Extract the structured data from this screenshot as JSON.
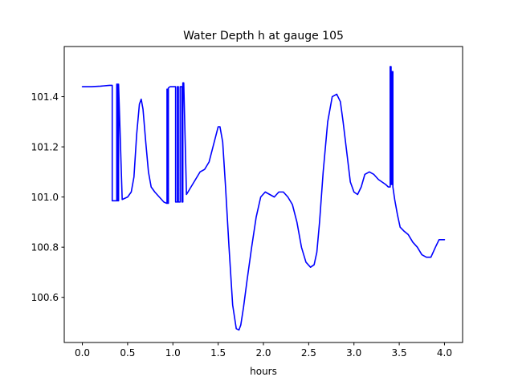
{
  "chart_data": {
    "type": "line",
    "title": "Water Depth h at gauge 105",
    "xlabel": "hours",
    "ylabel": "",
    "xlim": [
      -0.2,
      4.2
    ],
    "ylim": [
      100.42,
      101.6
    ],
    "x_ticks": [
      0.0,
      0.5,
      1.0,
      1.5,
      2.0,
      2.5,
      3.0,
      3.5,
      4.0
    ],
    "x_tick_labels": [
      "0.0",
      "0.5",
      "1.0",
      "1.5",
      "2.0",
      "2.5",
      "3.0",
      "3.5",
      "4.0"
    ],
    "y_ticks": [
      100.6,
      100.8,
      101.0,
      101.2,
      101.4
    ],
    "y_tick_labels": [
      "100.6",
      "100.8",
      "101.0",
      "101.2",
      "101.4"
    ],
    "grid": false,
    "legend": "none",
    "series": [
      {
        "color": "#0000ff",
        "x": [
          0.0,
          0.1,
          0.2,
          0.3,
          0.33,
          0.33,
          0.38,
          0.38,
          0.39,
          0.39,
          0.4,
          0.4,
          0.44,
          0.5,
          0.54,
          0.57,
          0.6,
          0.63,
          0.65,
          0.67,
          0.7,
          0.73,
          0.76,
          0.8,
          0.85,
          0.9,
          0.93,
          0.935,
          0.935,
          0.94,
          0.94,
          0.95,
          0.95,
          0.97,
          1.0,
          1.03,
          1.03,
          1.05,
          1.05,
          1.06,
          1.06,
          1.08,
          1.08,
          1.1,
          1.1,
          1.11,
          1.11,
          1.12,
          1.15,
          1.2,
          1.25,
          1.3,
          1.35,
          1.4,
          1.45,
          1.5,
          1.52,
          1.55,
          1.58,
          1.62,
          1.66,
          1.7,
          1.73,
          1.75,
          1.78,
          1.82,
          1.87,
          1.92,
          1.97,
          2.02,
          2.07,
          2.12,
          2.17,
          2.22,
          2.27,
          2.32,
          2.37,
          2.42,
          2.47,
          2.52,
          2.56,
          2.59,
          2.62,
          2.66,
          2.71,
          2.76,
          2.81,
          2.85,
          2.88,
          2.92,
          2.96,
          3.0,
          3.04,
          3.08,
          3.12,
          3.17,
          3.22,
          3.27,
          3.31,
          3.35,
          3.38,
          3.4,
          3.4,
          3.41,
          3.41,
          3.42,
          3.42,
          3.43,
          3.43,
          3.45,
          3.48,
          3.51,
          3.55,
          3.6,
          3.65,
          3.7,
          3.75,
          3.8,
          3.85,
          3.9,
          3.94,
          3.97,
          4.0
        ],
        "values": [
          101.44,
          101.44,
          101.442,
          101.445,
          101.445,
          100.985,
          100.985,
          101.45,
          101.45,
          100.985,
          100.985,
          101.45,
          100.99,
          101.0,
          101.02,
          101.08,
          101.25,
          101.37,
          101.39,
          101.35,
          101.22,
          101.1,
          101.04,
          101.02,
          101.0,
          100.98,
          100.975,
          100.975,
          101.43,
          101.43,
          100.975,
          100.975,
          101.435,
          101.44,
          101.44,
          101.44,
          100.98,
          100.98,
          101.44,
          101.44,
          100.98,
          100.98,
          101.44,
          101.44,
          100.98,
          100.98,
          101.455,
          101.455,
          101.01,
          101.04,
          101.07,
          101.1,
          101.11,
          101.14,
          101.21,
          101.28,
          101.28,
          101.22,
          101.05,
          100.8,
          100.57,
          100.475,
          100.47,
          100.49,
          100.56,
          100.67,
          100.8,
          100.92,
          101.0,
          101.02,
          101.01,
          101.0,
          101.02,
          101.02,
          101.0,
          100.97,
          100.9,
          100.8,
          100.74,
          100.72,
          100.73,
          100.78,
          100.9,
          101.1,
          101.3,
          101.4,
          101.41,
          101.38,
          101.3,
          101.18,
          101.06,
          101.02,
          101.01,
          101.04,
          101.09,
          101.1,
          101.09,
          101.07,
          101.06,
          101.05,
          101.04,
          101.04,
          101.52,
          101.52,
          101.05,
          101.05,
          101.5,
          101.5,
          101.04,
          100.99,
          100.93,
          100.88,
          100.865,
          100.85,
          100.82,
          100.8,
          100.77,
          100.76,
          100.76,
          100.8,
          100.83,
          100.83,
          100.83
        ]
      }
    ]
  }
}
